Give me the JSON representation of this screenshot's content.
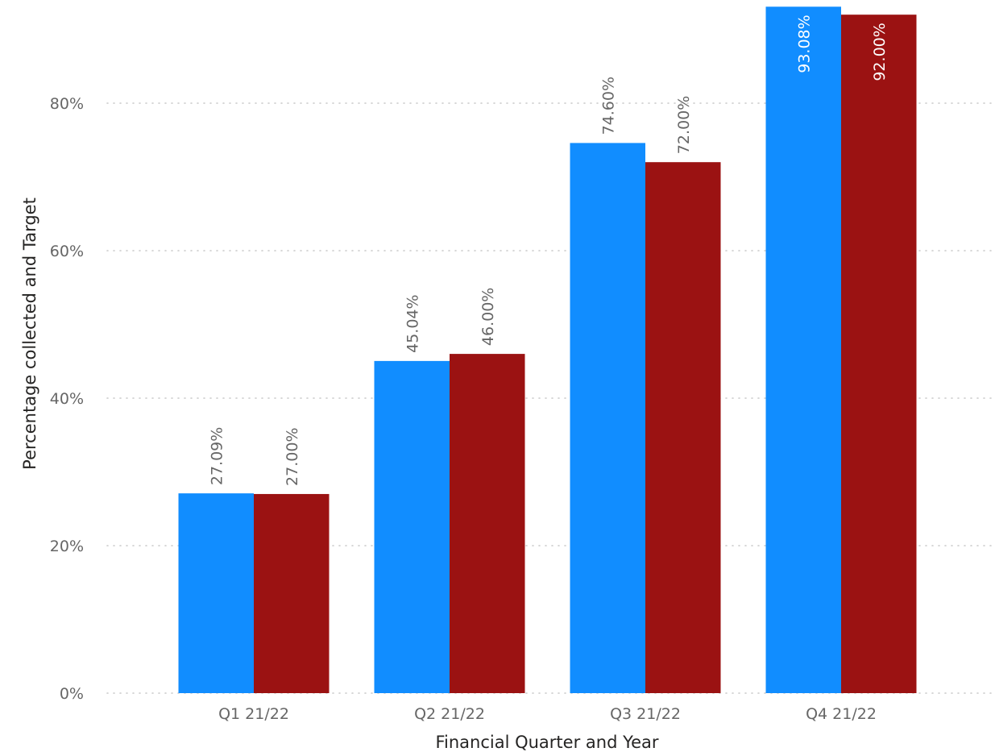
{
  "chart_data": {
    "type": "bar",
    "xlabel": "Financial Quarter and Year",
    "ylabel": "Percentage collected and Target",
    "categories": [
      "Q1 21/22",
      "Q2 21/22",
      "Q3 21/22",
      "Q4 21/22"
    ],
    "series": [
      {
        "values": [
          27.09,
          45.04,
          74.6,
          93.08
        ],
        "labels": [
          "27.09%",
          "45.04%",
          "74.60%",
          "93.08%"
        ],
        "color": "#118dff"
      },
      {
        "values": [
          27.0,
          46.0,
          72.0,
          92.0
        ],
        "labels": [
          "27.00%",
          "46.00%",
          "72.00%",
          "92.00%"
        ],
        "color": "#9b1212"
      }
    ],
    "ylim": [
      0,
      100
    ],
    "yticks": [
      0,
      20,
      40,
      60,
      80
    ],
    "ytick_labels": [
      "0%",
      "20%",
      "40%",
      "60%",
      "80%"
    ],
    "grid": true,
    "gridline_style": "dotted",
    "data_label_orientation": "vertical",
    "outside_label_color": "#666666",
    "inside_label_color": "#ffffff"
  }
}
